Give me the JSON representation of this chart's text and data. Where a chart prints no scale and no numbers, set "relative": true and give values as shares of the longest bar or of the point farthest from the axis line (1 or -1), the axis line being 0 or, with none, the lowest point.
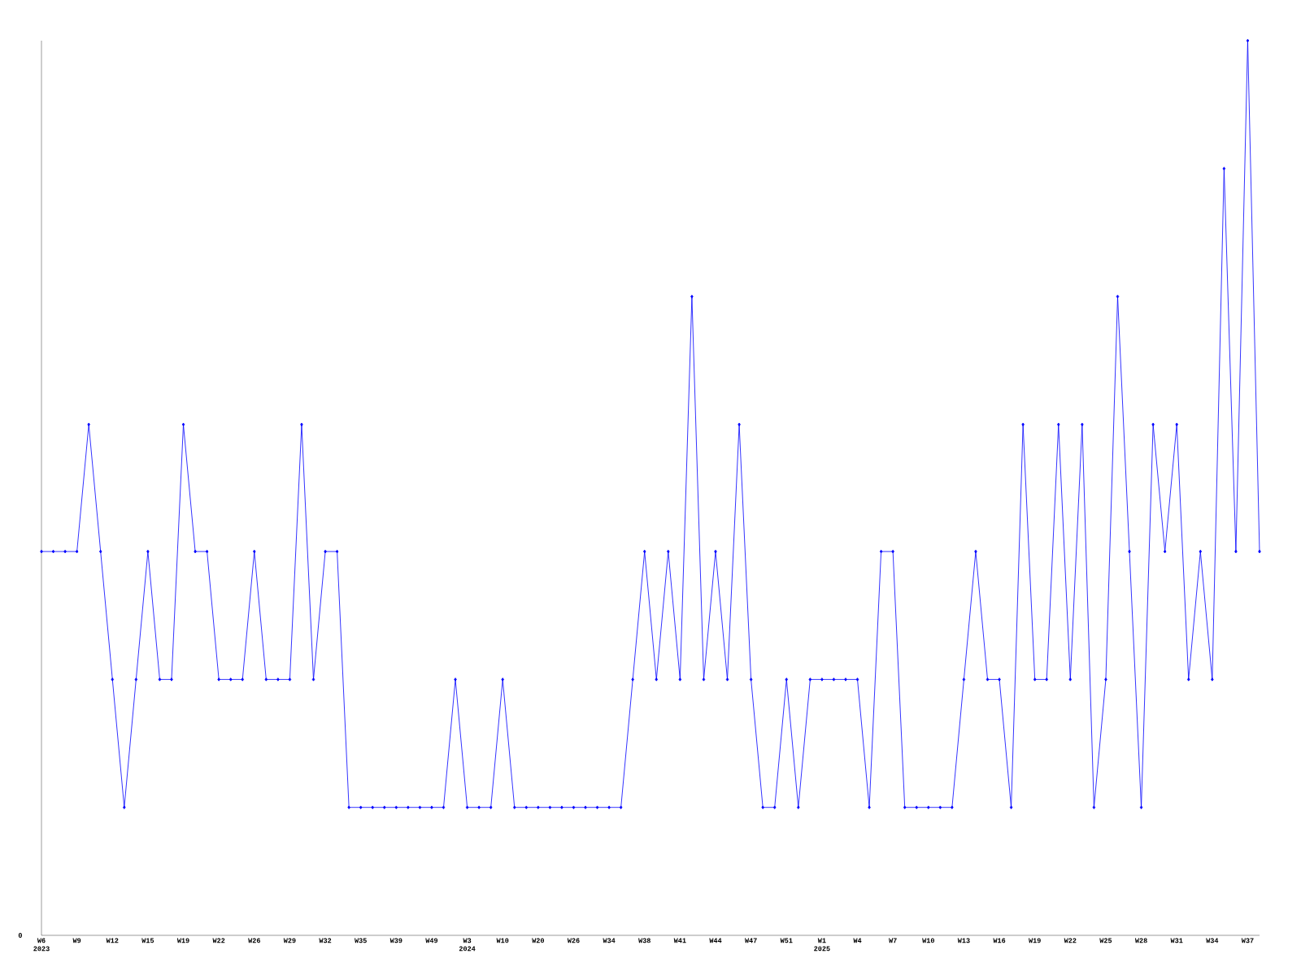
{
  "chart_data": {
    "type": "line",
    "relative": true,
    "marker": "diamond",
    "categories": [
      "W6 2023",
      null,
      null,
      "W9",
      null,
      null,
      "W12",
      null,
      null,
      "W15",
      null,
      null,
      "W19",
      null,
      null,
      "W22",
      null,
      null,
      "W26",
      null,
      null,
      "W29",
      null,
      null,
      "W32",
      null,
      null,
      "W35",
      null,
      null,
      "W39",
      null,
      null,
      "W49",
      null,
      null,
      "W3 2024",
      null,
      null,
      "W10",
      null,
      null,
      "W20",
      null,
      null,
      "W26",
      null,
      null,
      "W34",
      null,
      null,
      "W38",
      null,
      null,
      "W41",
      null,
      null,
      "W44",
      null,
      null,
      "W47",
      null,
      null,
      "W51",
      null,
      null,
      "W1 2025",
      null,
      null,
      "W4",
      null,
      null,
      "W7",
      null,
      null,
      "W10",
      null,
      null,
      "W13",
      null,
      null,
      "W16",
      null,
      null,
      "W19",
      null,
      null,
      "W22",
      null,
      null,
      "W25",
      null,
      null,
      "W28",
      null,
      null,
      "W31",
      null,
      null,
      "W34",
      null,
      null,
      "W37",
      null
    ],
    "series": [
      {
        "color": "#0000ff",
        "values": [
          0.429,
          0.429,
          0.429,
          0.429,
          0.571,
          0.429,
          0.286,
          0.143,
          0.286,
          0.429,
          0.286,
          0.286,
          0.571,
          0.429,
          0.429,
          0.286,
          0.286,
          0.286,
          0.429,
          0.286,
          0.286,
          0.286,
          0.571,
          0.286,
          0.429,
          0.429,
          0.143,
          0.143,
          0.143,
          0.143,
          0.143,
          0.143,
          0.143,
          0.143,
          0.143,
          0.286,
          0.143,
          0.143,
          0.143,
          0.286,
          0.143,
          0.143,
          0.143,
          0.143,
          0.143,
          0.143,
          0.143,
          0.143,
          0.143,
          0.143,
          0.286,
          0.429,
          0.286,
          0.429,
          0.286,
          0.714,
          0.286,
          0.429,
          0.286,
          0.571,
          0.286,
          0.143,
          0.143,
          0.286,
          0.143,
          0.286,
          0.286,
          0.286,
          0.286,
          0.286,
          0.143,
          0.429,
          0.429,
          0.143,
          0.143,
          0.143,
          0.143,
          0.143,
          0.286,
          0.429,
          0.286,
          0.286,
          0.143,
          0.571,
          0.286,
          0.286,
          0.571,
          0.286,
          0.571,
          0.143,
          0.286,
          0.714,
          0.429,
          0.143,
          0.571,
          0.429,
          0.571,
          0.286,
          0.429,
          0.286,
          0.857,
          0.429,
          1,
          0.429
        ]
      }
    ],
    "annotations": [
      "0"
    ]
  }
}
